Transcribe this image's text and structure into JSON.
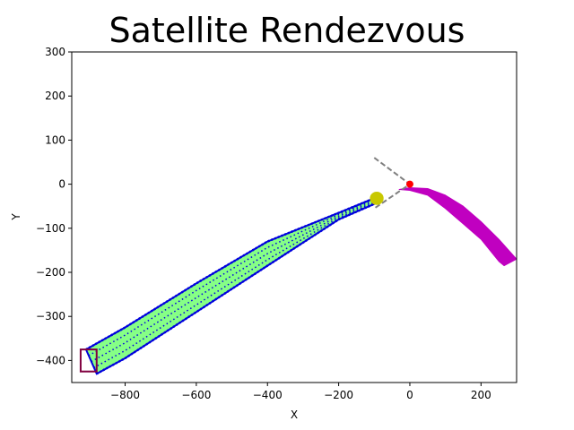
{
  "chart_data": {
    "type": "scatter",
    "title": "Satellite Rendezvous",
    "xlabel": "X",
    "ylabel": "Y",
    "xlim": [
      -950,
      300
    ],
    "ylim": [
      -450,
      300
    ],
    "xticks": [
      -800,
      -600,
      -400,
      -200,
      0,
      200
    ],
    "yticks": [
      -400,
      -300,
      -200,
      -100,
      0,
      100,
      200,
      300
    ],
    "xtick_labels": [
      "−800",
      "−600",
      "−400",
      "−200",
      "0",
      "200"
    ],
    "ytick_labels": [
      "−400",
      "−300",
      "−200",
      "−100",
      "0",
      "100",
      "200",
      "300"
    ],
    "grid": false,
    "colors": {
      "approach_band": "#0000dd",
      "approach_fill": "#22ff22",
      "target_trajectory": "#c000c0",
      "start_region": "#800040",
      "line_of_sight_cone": "#808080",
      "capture_zone": "#c8c800",
      "target": "#ff0000"
    },
    "series": [
      {
        "kind": "approach-band",
        "upper": [
          [
            -910,
            -375
          ],
          [
            -800,
            -325
          ],
          [
            -600,
            -225
          ],
          [
            -400,
            -130
          ],
          [
            -200,
            -65
          ],
          [
            -100,
            -32
          ]
        ],
        "lower": [
          [
            -880,
            -430
          ],
          [
            -800,
            -395
          ],
          [
            -600,
            -290
          ],
          [
            -400,
            -185
          ],
          [
            -200,
            -80
          ],
          [
            -100,
            -45
          ]
        ]
      },
      {
        "kind": "target-trajectory",
        "outer": [
          [
            -30,
            -12
          ],
          [
            0,
            -8
          ],
          [
            50,
            -10
          ],
          [
            100,
            -25
          ],
          [
            150,
            -50
          ],
          [
            200,
            -85
          ],
          [
            250,
            -125
          ],
          [
            300,
            -170
          ]
        ],
        "inner": [
          [
            -30,
            -12
          ],
          [
            0,
            -14
          ],
          [
            50,
            -25
          ],
          [
            100,
            -55
          ],
          [
            150,
            -90
          ],
          [
            200,
            -125
          ],
          [
            250,
            -175
          ],
          [
            265,
            -185
          ]
        ]
      }
    ],
    "start_region": {
      "x": [
        -925,
        -880
      ],
      "y": [
        -425,
        -375
      ]
    },
    "line_of_sight_cone": [
      [
        -100,
        60
      ],
      [
        0,
        0
      ],
      [
        -100,
        -55
      ]
    ],
    "capture_zone": {
      "center": [
        -93,
        -32
      ],
      "rx": 18,
      "ry": 14
    },
    "target_point": [
      0,
      0
    ]
  }
}
